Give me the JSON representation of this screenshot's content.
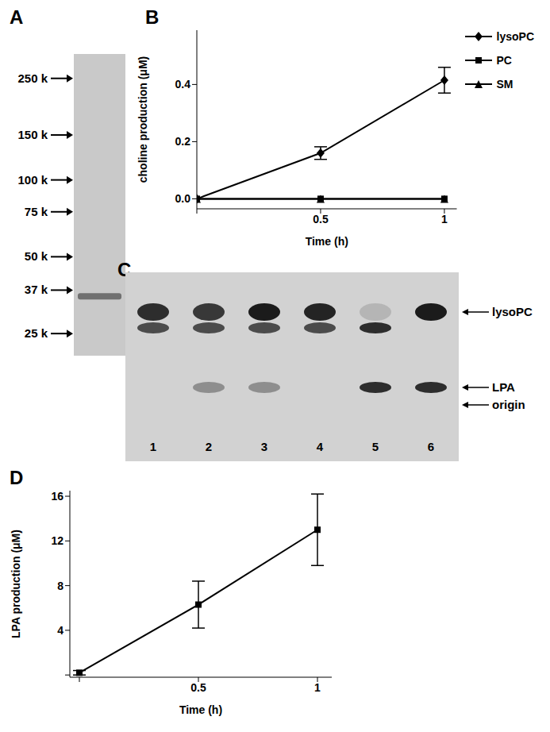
{
  "chart_data": [
    {
      "title": "A",
      "type": "gel",
      "log": "y",
      "ylim": [
        22,
        290
      ],
      "yticks": [
        {
          "value": 250,
          "label": "250 k"
        },
        {
          "value": 150,
          "label": "150 k"
        },
        {
          "value": 100,
          "label": "100 k"
        },
        {
          "value": 75,
          "label": "75 k"
        },
        {
          "value": 50,
          "label": "50 k"
        },
        {
          "value": 37,
          "label": "37 k"
        },
        {
          "value": 25,
          "label": "25 k"
        }
      ],
      "values": [
        35
      ]
    },
    {
      "title": "B",
      "type": "line",
      "x": [
        0,
        0.5,
        1
      ],
      "xlim": [
        0,
        1.05
      ],
      "xticks": [
        0,
        0.5,
        1
      ],
      "ylim": [
        -0.035,
        0.59
      ],
      "yticks": [
        {
          "value": 0,
          "label": "0.0"
        },
        {
          "value": 0.2,
          "label": "0.2"
        },
        {
          "value": 0.4,
          "label": "0.4"
        }
      ],
      "x_label": "Time (h)",
      "y_label": "choline production (μM)",
      "legend": "right",
      "series": [
        {
          "name": "lysoPC",
          "color": "#000000",
          "marker": "diamond",
          "values": [
            0,
            0.16,
            0.415
          ],
          "errors": [
            0,
            0.022,
            0.045
          ]
        },
        {
          "name": "PC",
          "color": "#000000",
          "marker": "square",
          "values": [
            0,
            0,
            0
          ],
          "errors": [
            0,
            0,
            0
          ]
        },
        {
          "name": "SM",
          "color": "#000000",
          "marker": "triangle",
          "values": [
            0,
            0,
            0
          ],
          "errors": [
            0,
            0,
            0
          ]
        }
      ]
    },
    {
      "title": "C",
      "type": "tlc",
      "categories": [
        "1",
        "2",
        "3",
        "4",
        "5",
        "6"
      ],
      "series": [
        {
          "name": "lysoPC",
          "values": [
            0.85,
            0.8,
            0.95,
            0.9,
            0.15,
            0.95
          ]
        },
        {
          "values": [
            0.7,
            0.7,
            0.7,
            0.7,
            0.85,
            0
          ]
        },
        {
          "name": "LPA",
          "values": [
            0,
            0.35,
            0.35,
            0,
            0.85,
            0.85
          ]
        }
      ],
      "annotations": [
        "origin"
      ]
    },
    {
      "title": "D",
      "type": "line",
      "x": [
        0,
        0.5,
        1
      ],
      "xlim": [
        -0.04,
        1.06
      ],
      "xticks": [
        0,
        0.5,
        1
      ],
      "ylim": [
        -0.2,
        16.5
      ],
      "yticks": [
        0,
        4,
        8,
        12,
        16
      ],
      "x_label": "Time (h)",
      "y_label": "LPA production (μM)",
      "series": [
        {
          "color": "#000000",
          "marker": "square",
          "values": [
            0.2,
            6.3,
            13
          ],
          "errors": [
            0.2,
            2.1,
            3.2
          ]
        }
      ]
    }
  ]
}
